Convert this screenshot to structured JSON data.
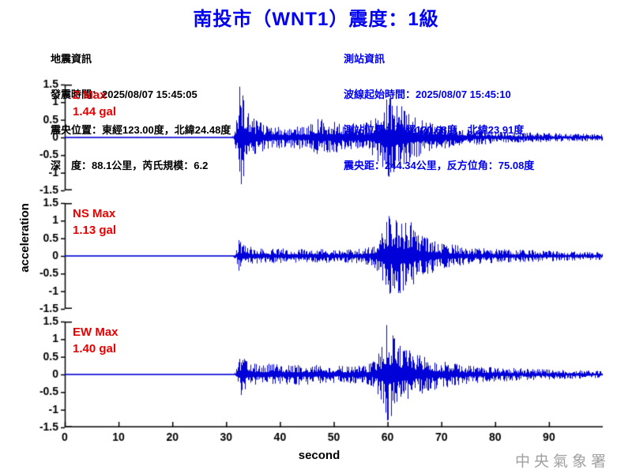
{
  "title": "南投市（WNT1）震度：1級",
  "event_info": {
    "heading": "地震資訊",
    "origin_time": "發震時間：2025/08/07 15:45:05",
    "epicenter": "震央位置：東經123.00度，北緯24.48度",
    "depth_magnitude": "深　度：88.1公里，芮氏規模：6.2"
  },
  "station_info": {
    "heading": "測站資訊",
    "wave_start_time": "波線起始時間：2025/08/07 15:45:10",
    "station_location": "測站位置：東經120.68度，北緯23.91度",
    "distance_azimuth": "震央距：244.34公里，反方位角：75.08度"
  },
  "watermark": "中央氣象署",
  "colors": {
    "title_blue": "#0000f0",
    "info_blue": "#0000f0",
    "text_black": "#000000",
    "trace_blue": "#0000d8",
    "max_red": "#e80000",
    "axis_black": "#000000",
    "watermark_gray": "#a0a0a0",
    "background": "#ffffff"
  },
  "chart_data": {
    "type": "line",
    "subtype": "seismogram-3-component",
    "xlabel": "second",
    "ylabel": "acceleration",
    "amplitude_unit": "gal",
    "xlim": [
      0,
      100
    ],
    "ylim": [
      -1.5,
      1.5
    ],
    "x_ticks": [
      0,
      10,
      20,
      30,
      40,
      50,
      60,
      70,
      80,
      90
    ],
    "y_ticks": [
      1.5,
      1,
      0.5,
      0,
      -0.5,
      -1,
      -1.5
    ],
    "y_tick_labels": [
      "1.5",
      "1",
      "0.5",
      "0",
      "-0.5",
      "-1",
      "-1.5"
    ],
    "p_wave_arrival_s": 31.5,
    "s_wave_arrival_s": 58.5,
    "panels": [
      {
        "channel": "Z",
        "max_label": "Z Max",
        "max_value": 1.44,
        "max_text": "1.44 gal",
        "envelope": [
          [
            0,
            0.02
          ],
          [
            30.8,
            0.02
          ],
          [
            31.4,
            0.06
          ],
          [
            31.9,
            0.55
          ],
          [
            32.4,
            1.44
          ],
          [
            33.2,
            1.22
          ],
          [
            33.8,
            0.9
          ],
          [
            34.5,
            0.65
          ],
          [
            35.5,
            0.5
          ],
          [
            37,
            0.38
          ],
          [
            39,
            0.32
          ],
          [
            41,
            0.3
          ],
          [
            43,
            0.34
          ],
          [
            45,
            0.3
          ],
          [
            46.5,
            0.5
          ],
          [
            47.5,
            0.55
          ],
          [
            48.5,
            0.42
          ],
          [
            50,
            0.46
          ],
          [
            51.5,
            0.38
          ],
          [
            53,
            0.42
          ],
          [
            54.5,
            0.38
          ],
          [
            56,
            0.42
          ],
          [
            57.5,
            0.55
          ],
          [
            58.5,
            0.82
          ],
          [
            59.5,
            1.05
          ],
          [
            60.5,
            1.15
          ],
          [
            61.3,
            0.95
          ],
          [
            62.2,
            1.05
          ],
          [
            63,
            0.85
          ],
          [
            64,
            0.7
          ],
          [
            65.5,
            0.55
          ],
          [
            67,
            0.48
          ],
          [
            68.5,
            0.42
          ],
          [
            70,
            0.36
          ],
          [
            72,
            0.3
          ],
          [
            74,
            0.26
          ],
          [
            76,
            0.22
          ],
          [
            78,
            0.2
          ],
          [
            80,
            0.17
          ],
          [
            83,
            0.15
          ],
          [
            86,
            0.14
          ],
          [
            89,
            0.15
          ],
          [
            92,
            0.12
          ],
          [
            95,
            0.11
          ],
          [
            100,
            0.1
          ]
        ]
      },
      {
        "channel": "NS",
        "max_label": "NS Max",
        "max_value": 1.13,
        "max_text": "1.13 gal",
        "envelope": [
          [
            0,
            0.015
          ],
          [
            31.2,
            0.015
          ],
          [
            31.8,
            0.12
          ],
          [
            32.3,
            0.45
          ],
          [
            33,
            0.35
          ],
          [
            34,
            0.28
          ],
          [
            35.5,
            0.22
          ],
          [
            38,
            0.2
          ],
          [
            41,
            0.22
          ],
          [
            44,
            0.2
          ],
          [
            47,
            0.22
          ],
          [
            50,
            0.18
          ],
          [
            53,
            0.2
          ],
          [
            55.5,
            0.22
          ],
          [
            57,
            0.3
          ],
          [
            58.3,
            0.55
          ],
          [
            59.3,
            0.85
          ],
          [
            60.2,
            1.13
          ],
          [
            61.2,
            1.0
          ],
          [
            62.2,
            1.1
          ],
          [
            63.2,
            0.95
          ],
          [
            64.2,
            1.0
          ],
          [
            65.2,
            0.7
          ],
          [
            66.5,
            0.55
          ],
          [
            68,
            0.5
          ],
          [
            69.5,
            0.4
          ],
          [
            71,
            0.35
          ],
          [
            73,
            0.3
          ],
          [
            75,
            0.25
          ],
          [
            77.5,
            0.22
          ],
          [
            80,
            0.2
          ],
          [
            83,
            0.18
          ],
          [
            86,
            0.17
          ],
          [
            89,
            0.16
          ],
          [
            92,
            0.14
          ],
          [
            95,
            0.13
          ],
          [
            100,
            0.11
          ]
        ]
      },
      {
        "channel": "EW",
        "max_label": "EW Max",
        "max_value": 1.4,
        "max_text": "1.40 gal",
        "envelope": [
          [
            0,
            0.015
          ],
          [
            31.4,
            0.015
          ],
          [
            32,
            0.2
          ],
          [
            32.7,
            0.6
          ],
          [
            33.5,
            0.45
          ],
          [
            34.5,
            0.35
          ],
          [
            36,
            0.28
          ],
          [
            38,
            0.32
          ],
          [
            40,
            0.28
          ],
          [
            43,
            0.3
          ],
          [
            46,
            0.28
          ],
          [
            49,
            0.26
          ],
          [
            52,
            0.24
          ],
          [
            54,
            0.26
          ],
          [
            56,
            0.28
          ],
          [
            57.5,
            0.4
          ],
          [
            58.8,
            0.8
          ],
          [
            59.8,
            1.4
          ],
          [
            60.8,
            1.15
          ],
          [
            61.8,
            0.95
          ],
          [
            63,
            0.85
          ],
          [
            64,
            0.7
          ],
          [
            65.5,
            0.6
          ],
          [
            67,
            0.52
          ],
          [
            68.5,
            0.45
          ],
          [
            70,
            0.4
          ],
          [
            72,
            0.33
          ],
          [
            74,
            0.28
          ],
          [
            76,
            0.25
          ],
          [
            78.5,
            0.22
          ],
          [
            81,
            0.2
          ],
          [
            84,
            0.18
          ],
          [
            87,
            0.16
          ],
          [
            90,
            0.15
          ],
          [
            93,
            0.13
          ],
          [
            96,
            0.12
          ],
          [
            100,
            0.1
          ]
        ]
      }
    ]
  }
}
